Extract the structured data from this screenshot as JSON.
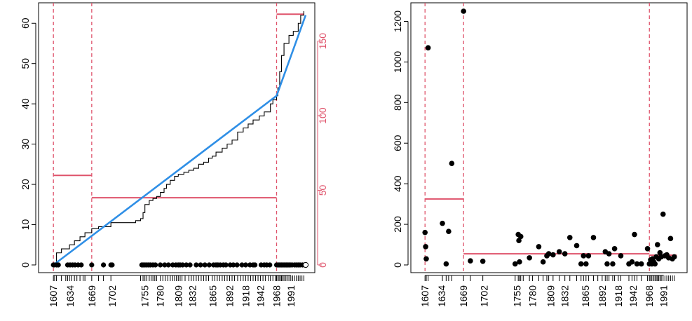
{
  "chart_data": [
    {
      "type": "line",
      "title": "",
      "xlabel": "",
      "ylabel": "",
      "xlim": [
        1600,
        2023
      ],
      "ylim": [
        0,
        63
      ],
      "y2lim": [
        0,
        170
      ],
      "x_tick_labels": [
        "1607",
        "1634",
        "1669",
        "1702",
        "1755",
        "1780",
        "1809",
        "1832",
        "1865",
        "1892",
        "1918",
        "1942",
        "1968",
        "1991"
      ],
      "y_tick_labels": [
        "0",
        "10",
        "20",
        "30",
        "40",
        "50",
        "60"
      ],
      "y2_tick_labels": [
        "0",
        "50",
        "100",
        "150"
      ],
      "cumulative_step": {
        "x": [
          1607,
          1612,
          1620,
          1627,
          1633,
          1641,
          1650,
          1658,
          1669,
          1680,
          1700,
          1740,
          1748,
          1752,
          1755,
          1762,
          1768,
          1774,
          1780,
          1786,
          1790,
          1796,
          1803,
          1809,
          1818,
          1826,
          1834,
          1842,
          1850,
          1858,
          1864,
          1870,
          1880,
          1888,
          1896,
          1905,
          1914,
          1922,
          1930,
          1940,
          1948,
          1958,
          1962,
          1968,
          1970,
          1973,
          1976,
          1980,
          1988,
          1995,
          2003,
          2007,
          2012
        ],
        "y": [
          0,
          3,
          4,
          4,
          5,
          6,
          7,
          8,
          9,
          9.5,
          10.5,
          11,
          11.5,
          13,
          15,
          16,
          16.5,
          17,
          18,
          19,
          20,
          21,
          22,
          22.5,
          23,
          23.5,
          24,
          25,
          25.5,
          26.5,
          27,
          28,
          29,
          30,
          31,
          33,
          34,
          35,
          36,
          37,
          38,
          40,
          41,
          42,
          44,
          48,
          52,
          55,
          57,
          58,
          60,
          62,
          63
        ]
      },
      "fitted_segments": {
        "x": [
          1607,
          1968,
          2015
        ],
        "y": [
          0,
          42,
          62
        ]
      },
      "segment_means": [
        {
          "x_start": 1607,
          "x_end": 1669,
          "value": 60
        },
        {
          "x_start": 1669,
          "x_end": 1968,
          "value": 45
        },
        {
          "x_start": 1968,
          "x_end": 2012,
          "value": 168
        }
      ],
      "changepoints": [
        1607,
        1669,
        1968
      ],
      "event_years": [
        1607,
        1608,
        1612,
        1615,
        1630,
        1634,
        1638,
        1642,
        1647,
        1652,
        1669,
        1688,
        1700,
        1702,
        1750,
        1752,
        1755,
        1758,
        1761,
        1764,
        1768,
        1772,
        1780,
        1787,
        1793,
        1800,
        1805,
        1809,
        1812,
        1816,
        1822,
        1828,
        1838,
        1845,
        1852,
        1859,
        1866,
        1870,
        1873,
        1877,
        1882,
        1886,
        1893,
        1898,
        1904,
        1912,
        1918,
        1925,
        1930,
        1933,
        1943,
        1948,
        1952,
        1957,
        1968,
        1970,
        1972,
        1974,
        1976,
        1978,
        1980,
        1982,
        1984,
        1986,
        1988,
        1990,
        1993,
        1997,
        2000,
        2003,
        2006,
        2010,
        2015
      ],
      "rug_years": [
        1607,
        1609,
        1612,
        1620,
        1627,
        1630,
        1633,
        1636,
        1641,
        1645,
        1650,
        1655,
        1658,
        1669,
        1680,
        1688,
        1700,
        1748,
        1752,
        1755,
        1758,
        1762,
        1765,
        1768,
        1771,
        1774,
        1780,
        1784,
        1788,
        1792,
        1796,
        1800,
        1803,
        1806,
        1809,
        1812,
        1815,
        1820,
        1826,
        1830,
        1834,
        1838,
        1842,
        1846,
        1850,
        1854,
        1858,
        1864,
        1868,
        1872,
        1876,
        1880,
        1884,
        1888,
        1892,
        1896,
        1900,
        1905,
        1910,
        1914,
        1918,
        1922,
        1926,
        1930,
        1934,
        1938,
        1942,
        1946,
        1950,
        1955,
        1958,
        1962,
        1966,
        1968,
        1970,
        1972,
        1974,
        1976,
        1978,
        1980,
        1983,
        1985,
        1988,
        1991,
        1994,
        1997,
        2000,
        2003,
        2006,
        2009,
        2012
      ]
    },
    {
      "type": "scatter",
      "title": "",
      "xlabel": "",
      "ylabel": "",
      "xlim": [
        1600,
        2023
      ],
      "ylim": [
        0,
        1250
      ],
      "x_tick_labels": [
        "1607",
        "1634",
        "1669",
        "1702",
        "1755",
        "1780",
        "1809",
        "1832",
        "1865",
        "1892",
        "1918",
        "1942",
        "1968",
        "1991"
      ],
      "y_tick_labels": [
        "0",
        "200",
        "400",
        "600",
        "800",
        "1000",
        "1200"
      ],
      "points": [
        {
          "x": 1607,
          "y": 160
        },
        {
          "x": 1608,
          "y": 90
        },
        {
          "x": 1609,
          "y": 30
        },
        {
          "x": 1612,
          "y": 1070
        },
        {
          "x": 1635,
          "y": 205
        },
        {
          "x": 1641,
          "y": 5
        },
        {
          "x": 1645,
          "y": 165
        },
        {
          "x": 1650,
          "y": 500
        },
        {
          "x": 1669,
          "y": 1250
        },
        {
          "x": 1680,
          "y": 20
        },
        {
          "x": 1700,
          "y": 18
        },
        {
          "x": 1752,
          "y": 5
        },
        {
          "x": 1757,
          "y": 150
        },
        {
          "x": 1758,
          "y": 120
        },
        {
          "x": 1759,
          "y": 15
        },
        {
          "x": 1761,
          "y": 140
        },
        {
          "x": 1775,
          "y": 35
        },
        {
          "x": 1790,
          "y": 90
        },
        {
          "x": 1797,
          "y": 15
        },
        {
          "x": 1803,
          "y": 45
        },
        {
          "x": 1806,
          "y": 55
        },
        {
          "x": 1813,
          "y": 50
        },
        {
          "x": 1823,
          "y": 65
        },
        {
          "x": 1832,
          "y": 55
        },
        {
          "x": 1840,
          "y": 135
        },
        {
          "x": 1851,
          "y": 95
        },
        {
          "x": 1858,
          "y": 5
        },
        {
          "x": 1862,
          "y": 45
        },
        {
          "x": 1866,
          "y": 5
        },
        {
          "x": 1870,
          "y": 45
        },
        {
          "x": 1878,
          "y": 135
        },
        {
          "x": 1897,
          "y": 65
        },
        {
          "x": 1900,
          "y": 5
        },
        {
          "x": 1903,
          "y": 55
        },
        {
          "x": 1909,
          "y": 5
        },
        {
          "x": 1912,
          "y": 80
        },
        {
          "x": 1922,
          "y": 45
        },
        {
          "x": 1935,
          "y": 5
        },
        {
          "x": 1940,
          "y": 15
        },
        {
          "x": 1944,
          "y": 150
        },
        {
          "x": 1948,
          "y": 5
        },
        {
          "x": 1955,
          "y": 5
        },
        {
          "x": 1965,
          "y": 80
        },
        {
          "x": 1968,
          "y": 5
        },
        {
          "x": 1970,
          "y": 25
        },
        {
          "x": 1972,
          "y": 5
        },
        {
          "x": 1973,
          "y": 30
        },
        {
          "x": 1975,
          "y": 15
        },
        {
          "x": 1977,
          "y": 5
        },
        {
          "x": 1979,
          "y": 40
        },
        {
          "x": 1981,
          "y": 100
        },
        {
          "x": 1983,
          "y": 30
        },
        {
          "x": 1985,
          "y": 60
        },
        {
          "x": 1987,
          "y": 40
        },
        {
          "x": 1990,
          "y": 250
        },
        {
          "x": 1993,
          "y": 45
        },
        {
          "x": 1996,
          "y": 50
        },
        {
          "x": 1999,
          "y": 35
        },
        {
          "x": 2002,
          "y": 130
        },
        {
          "x": 2005,
          "y": 30
        },
        {
          "x": 2008,
          "y": 40
        }
      ],
      "segment_means": [
        {
          "x_start": 1607,
          "x_end": 1669,
          "value": 325
        },
        {
          "x_start": 1669,
          "x_end": 1968,
          "value": 55
        },
        {
          "x_start": 1968,
          "x_end": 2012,
          "value": 48
        }
      ],
      "changepoints": [
        1607,
        1669,
        1968
      ],
      "rug_years": [
        1607,
        1609,
        1612,
        1635,
        1641,
        1645,
        1650,
        1669,
        1680,
        1700,
        1752,
        1757,
        1759,
        1761,
        1765,
        1775,
        1780,
        1790,
        1797,
        1803,
        1806,
        1813,
        1823,
        1832,
        1840,
        1851,
        1858,
        1862,
        1866,
        1870,
        1878,
        1885,
        1892,
        1897,
        1900,
        1903,
        1909,
        1912,
        1918,
        1922,
        1935,
        1940,
        1944,
        1948,
        1955,
        1965,
        1968,
        1970,
        1972,
        1975,
        1977,
        1979,
        1981,
        1983,
        1985,
        1987,
        1990,
        1993,
        1996,
        1999,
        2002,
        2005,
        2008
      ]
    }
  ],
  "colors": {
    "step_line": "#000000",
    "fit_line": "#2F8FE6",
    "red": "#DF536B",
    "points": "#000000"
  }
}
